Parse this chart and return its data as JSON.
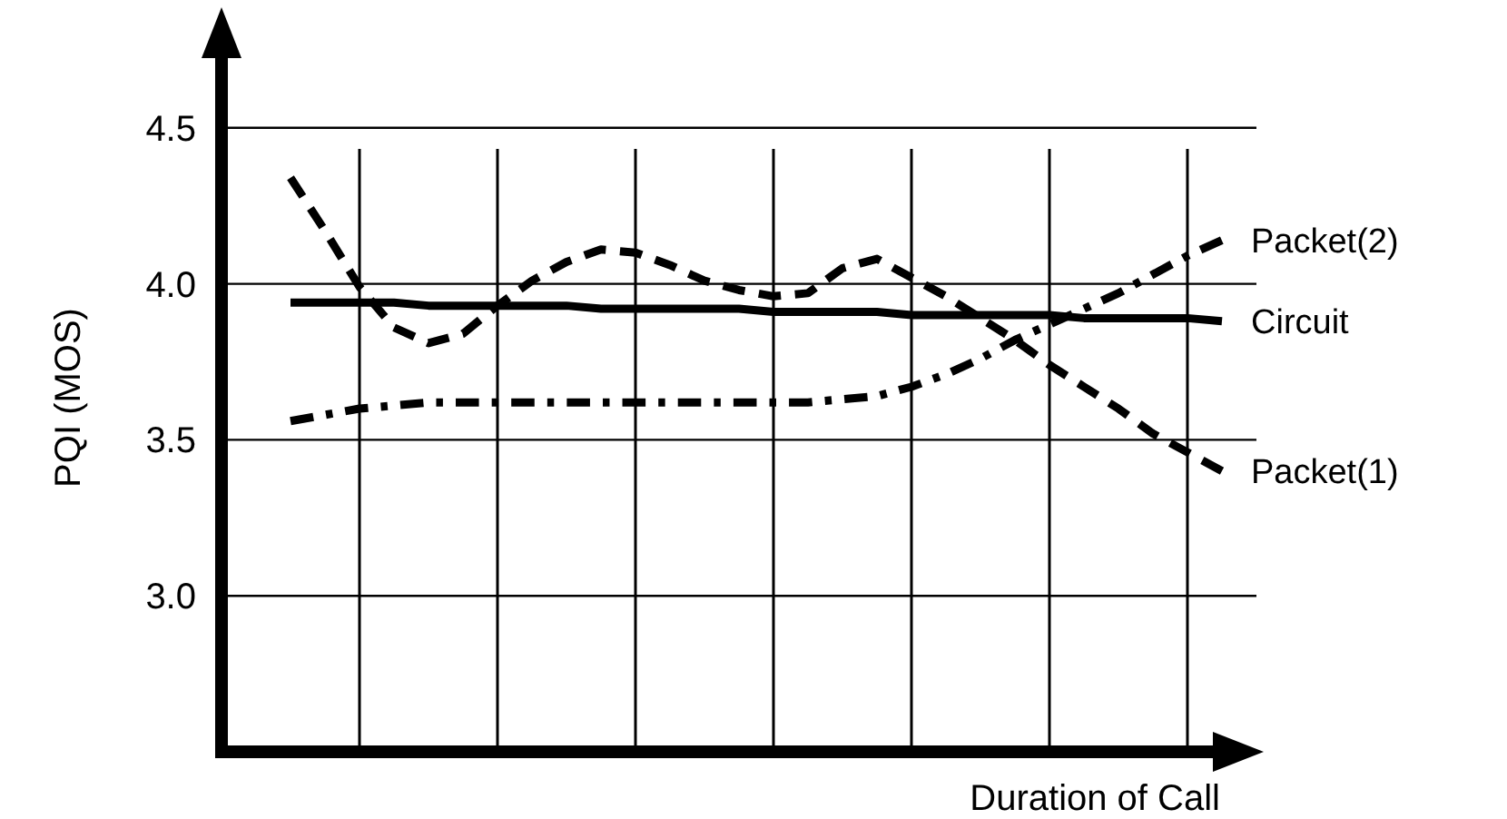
{
  "chart_data": {
    "type": "line",
    "xlabel": "Duration of Call",
    "ylabel": "PQI (MOS)",
    "categories": [
      null,
      null,
      null,
      null,
      null,
      null,
      null,
      null,
      null,
      null,
      null,
      null,
      null,
      null,
      null,
      null,
      null,
      null,
      null,
      null,
      null,
      null,
      null,
      null,
      null,
      null,
      null,
      null
    ],
    "ylim": [
      2.5,
      4.77
    ],
    "yticks": [
      {
        "value": 3,
        "label": "3.0"
      },
      {
        "value": 3.5,
        "label": "3.5"
      },
      {
        "value": 4,
        "label": "4.0"
      },
      {
        "value": 4.5,
        "label": "4.5"
      }
    ],
    "grid": true,
    "marker": "none",
    "series": [
      {
        "name": "Packet(2)",
        "color": "#000000",
        "line_style": "dashdot",
        "values": [
          3.56,
          3.58,
          3.6,
          3.61,
          3.62,
          3.62,
          3.62,
          3.62,
          3.62,
          3.62,
          3.62,
          3.62,
          3.62,
          3.62,
          3.62,
          3.62,
          3.63,
          3.64,
          3.67,
          3.71,
          3.76,
          3.82,
          3.87,
          3.92,
          3.97,
          4.03,
          4.09,
          4.14
        ]
      },
      {
        "name": "Circuit",
        "color": "#000000",
        "line_style": "solid",
        "values": [
          3.94,
          3.94,
          3.94,
          3.94,
          3.93,
          3.93,
          3.93,
          3.93,
          3.93,
          3.92,
          3.92,
          3.92,
          3.92,
          3.92,
          3.91,
          3.91,
          3.91,
          3.91,
          3.9,
          3.9,
          3.9,
          3.9,
          3.9,
          3.89,
          3.89,
          3.89,
          3.89,
          3.88
        ]
      },
      {
        "name": "Packet(1)",
        "color": "#000000",
        "line_style": "dashed",
        "values": [
          4.34,
          4.17,
          3.99,
          3.86,
          3.81,
          3.84,
          3.93,
          4.01,
          4.07,
          4.11,
          4.1,
          4.06,
          4.01,
          3.98,
          3.96,
          3.97,
          4.05,
          4.08,
          4.02,
          3.96,
          3.89,
          3.82,
          3.74,
          3.67,
          3.6,
          3.52,
          3.46,
          3.4
        ]
      }
    ]
  }
}
